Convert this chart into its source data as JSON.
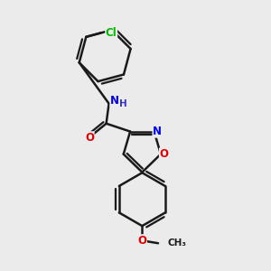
{
  "background_color": "#ebebeb",
  "bond_color": "#1a1a1a",
  "bond_width": 1.8,
  "atom_colors": {
    "C": "#1a1a1a",
    "N": "#0000ee",
    "O": "#dd0000",
    "Cl": "#00bb00",
    "H": "#3333cc"
  },
  "font_size": 8.5,
  "figsize": [
    3.0,
    3.0
  ],
  "dpi": 100,
  "xlim": [
    0,
    10
  ],
  "ylim": [
    0,
    10
  ]
}
